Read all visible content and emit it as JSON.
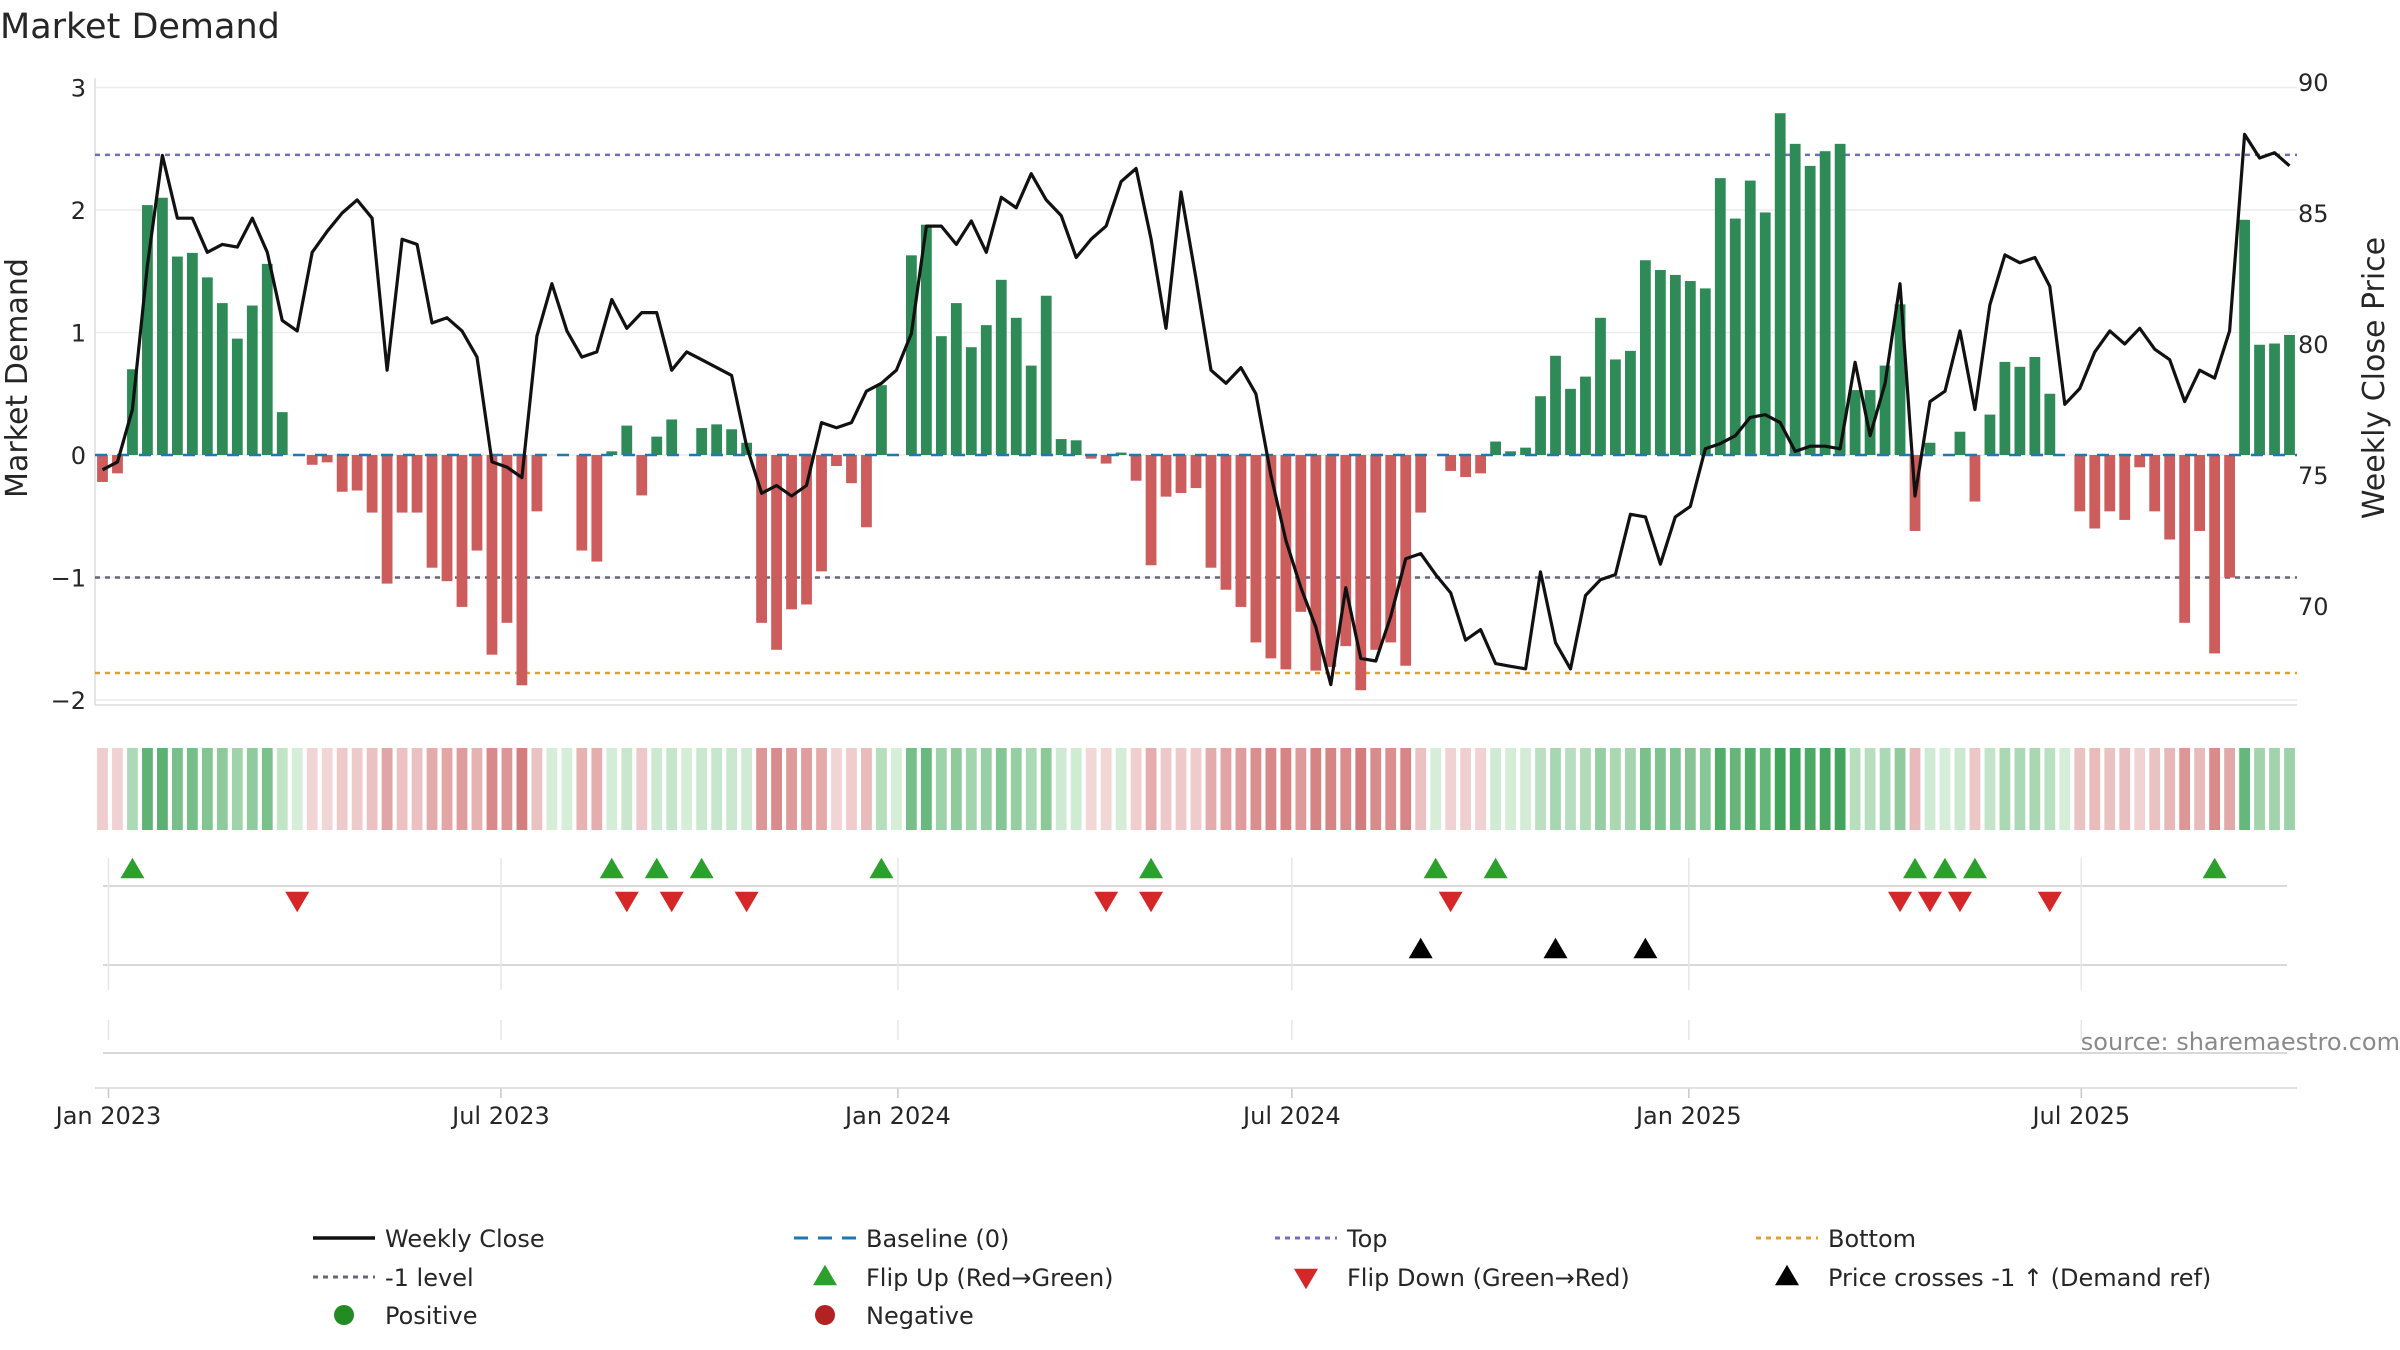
{
  "chart_data": {
    "type": "bar",
    "title": "Market Demand",
    "ylabel": "Market Demand",
    "y2label": "Weekly Close Price",
    "ylim": [
      -2.2,
      3.05
    ],
    "y2lim": [
      65.5,
      90.5
    ],
    "yticks": [
      "3",
      "2",
      "1",
      "0",
      "−1",
      "−2"
    ],
    "y2ticks": [
      "90",
      "85",
      "80",
      "75",
      "70"
    ],
    "xticks": [
      "Jan 2023",
      "Jul 2023",
      "Jan 2024",
      "Jul 2024",
      "Jan 2025",
      "Jul 2025"
    ],
    "reference_lines": [
      {
        "name": "Top",
        "value": 2.45,
        "color": "#6f6fbf"
      },
      {
        "name": "-1 level",
        "value": -1.0,
        "color": "#666677"
      },
      {
        "name": "Bottom",
        "value": -1.78,
        "color": "#e0a030"
      },
      {
        "name": "Baseline (0)",
        "value": 0,
        "color": "#1f77b4"
      }
    ],
    "demand": [
      -0.22,
      -0.15,
      0.7,
      2.04,
      2.1,
      1.62,
      1.65,
      1.45,
      1.24,
      0.95,
      1.22,
      1.56,
      0.35,
      0.0,
      -0.08,
      -0.06,
      -0.3,
      -0.29,
      -0.47,
      -1.05,
      -0.47,
      -0.47,
      -0.92,
      -1.03,
      -1.24,
      -0.78,
      -1.63,
      -1.37,
      -1.88,
      -0.46,
      0.0,
      0.0,
      -0.78,
      -0.87,
      0.03,
      0.24,
      -0.33,
      0.15,
      0.29,
      0.0,
      0.22,
      0.25,
      0.21,
      0.1,
      -1.37,
      -1.59,
      -1.26,
      -1.22,
      -0.95,
      -0.09,
      -0.23,
      -0.59,
      0.57,
      0.0,
      1.63,
      1.88,
      0.97,
      1.24,
      0.88,
      1.06,
      1.43,
      1.12,
      0.73,
      1.3,
      0.13,
      0.12,
      -0.03,
      -0.07,
      0.02,
      -0.21,
      -0.9,
      -0.34,
      -0.31,
      -0.27,
      -0.92,
      -1.1,
      -1.24,
      -1.53,
      -1.66,
      -1.75,
      -1.28,
      -1.76,
      -1.73,
      -1.56,
      -1.92,
      -1.59,
      -1.53,
      -1.72,
      -0.47,
      0.0,
      -0.13,
      -0.18,
      -0.15,
      0.11,
      0.03,
      0.06,
      0.48,
      0.81,
      0.54,
      0.64,
      1.12,
      0.78,
      0.85,
      1.59,
      1.51,
      1.47,
      1.42,
      1.36,
      2.26,
      1.93,
      2.24,
      1.98,
      2.79,
      2.54,
      2.36,
      2.48,
      2.54,
      0.53,
      0.53,
      0.73,
      1.23,
      -0.62,
      0.1,
      0.0,
      0.19,
      -0.38,
      0.33,
      0.76,
      0.72,
      0.8,
      0.5,
      0.0,
      -0.46,
      -0.6,
      -0.46,
      -0.53,
      -0.1,
      -0.46,
      -0.69,
      -1.37,
      -0.62,
      -1.62,
      -1.0,
      1.92,
      0.9,
      0.91,
      0.98
    ],
    "close": [
      75.2,
      75.5,
      77.5,
      83.0,
      87.2,
      84.8,
      84.8,
      83.5,
      83.8,
      83.7,
      84.8,
      83.5,
      80.9,
      80.5,
      83.5,
      84.3,
      85.0,
      85.5,
      84.8,
      79.0,
      84.0,
      83.8,
      80.8,
      81.0,
      80.5,
      79.5,
      75.5,
      75.3,
      74.9,
      80.3,
      82.3,
      80.5,
      79.5,
      79.7,
      81.7,
      80.6,
      81.2,
      81.2,
      79.0,
      79.7,
      79.4,
      79.1,
      78.8,
      76.1,
      74.3,
      74.6,
      74.2,
      74.6,
      77.0,
      76.8,
      77.0,
      78.2,
      78.5,
      79.0,
      80.4,
      84.5,
      84.5,
      83.8,
      84.7,
      83.5,
      85.6,
      85.2,
      86.5,
      85.5,
      84.9,
      83.3,
      84.0,
      84.5,
      86.2,
      86.7,
      84.0,
      80.6,
      85.8,
      82.5,
      79.0,
      78.5,
      79.1,
      78.1,
      75.0,
      72.5,
      70.7,
      69.2,
      67.0,
      70.7,
      68.0,
      67.9,
      69.6,
      71.8,
      72.0,
      71.2,
      70.5,
      68.7,
      69.1,
      67.8,
      67.7,
      67.6,
      71.3,
      68.6,
      67.6,
      70.4,
      71.0,
      71.2,
      73.5,
      73.4,
      71.6,
      73.4,
      73.8,
      76.0,
      76.2,
      76.5,
      77.2,
      77.3,
      77.0,
      75.9,
      76.1,
      76.1,
      76.0,
      79.3,
      76.5,
      78.5,
      82.3,
      74.2,
      77.8,
      78.2,
      80.5,
      77.5,
      81.5,
      83.4,
      83.1,
      83.3,
      82.2,
      77.7,
      78.3,
      79.7,
      80.5,
      80.0,
      80.6,
      79.8,
      79.4,
      77.8,
      79.0,
      78.7,
      80.5,
      88.0,
      87.1,
      87.3,
      86.8
    ],
    "bar_colors": {
      "positive": "#2e8b57",
      "negative": "#cd5c5c"
    },
    "strip_colors": {
      "pos_strong": "#3fa35a",
      "pos_light": "#d6eed8",
      "neg_strong": "#d47c7c",
      "neg_light": "#f3d8d8"
    },
    "flip_up_weeks": [
      2,
      34,
      37,
      40,
      52,
      70,
      89,
      93,
      121,
      123,
      125,
      141
    ],
    "flip_down_weeks": [
      13,
      35,
      38,
      43,
      67,
      70,
      90,
      120,
      122,
      124,
      130
    ],
    "price_cross_weeks": [
      88,
      97,
      103
    ],
    "line_color": "#111111",
    "source": "source: sharemaestro.com"
  },
  "legend": [
    {
      "label": "Weekly Close",
      "kind": "solid-line",
      "color": "#111111"
    },
    {
      "label": "Baseline (0)",
      "kind": "dash-line",
      "color": "#1f77b4"
    },
    {
      "label": "Top",
      "kind": "dot-line",
      "color": "#6f6fbf"
    },
    {
      "label": "Bottom",
      "kind": "dot-line",
      "color": "#e0a030"
    },
    {
      "label": "-1 level",
      "kind": "dot-line",
      "color": "#666677"
    },
    {
      "label": "Flip Up (Red→Green)",
      "kind": "tri-up",
      "color": "#2ca02c"
    },
    {
      "label": "Flip Down (Green→Red)",
      "kind": "tri-down",
      "color": "#d62728"
    },
    {
      "label": "Price crosses -1 ↑ (Demand ref)",
      "kind": "tri-up",
      "color": "#000000"
    },
    {
      "label": "Positive",
      "kind": "dot",
      "color": "#228b22"
    },
    {
      "label": "Negative",
      "kind": "dot",
      "color": "#b22222"
    }
  ]
}
